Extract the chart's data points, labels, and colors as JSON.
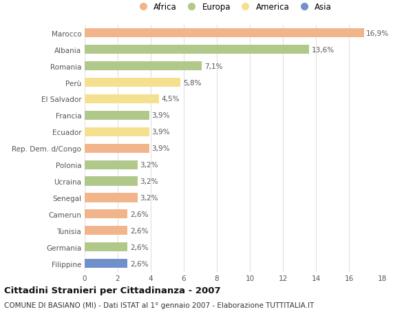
{
  "countries": [
    "Filippine",
    "Germania",
    "Tunisia",
    "Camerun",
    "Senegal",
    "Ucraina",
    "Polonia",
    "Rep. Dem. d/Congo",
    "Ecuador",
    "Francia",
    "El Salvador",
    "Perù",
    "Romania",
    "Albania",
    "Marocco"
  ],
  "values": [
    2.6,
    2.6,
    2.6,
    2.6,
    3.2,
    3.2,
    3.2,
    3.9,
    3.9,
    3.9,
    4.5,
    5.8,
    7.1,
    13.6,
    16.9
  ],
  "labels": [
    "2,6%",
    "2,6%",
    "2,6%",
    "2,6%",
    "3,2%",
    "3,2%",
    "3,2%",
    "3,9%",
    "3,9%",
    "3,9%",
    "4,5%",
    "5,8%",
    "7,1%",
    "13,6%",
    "16,9%"
  ],
  "continents": [
    "Asia",
    "Europa",
    "Africa",
    "Africa",
    "Africa",
    "Europa",
    "Europa",
    "Africa",
    "America",
    "Europa",
    "America",
    "America",
    "Europa",
    "Europa",
    "Africa"
  ],
  "colors": {
    "Africa": "#F2B48A",
    "Europa": "#B0C88A",
    "America": "#F5E090",
    "Asia": "#7090CC"
  },
  "legend_order": [
    "Africa",
    "Europa",
    "America",
    "Asia"
  ],
  "title": "Cittadini Stranieri per Cittadinanza - 2007",
  "subtitle": "COMUNE DI BASIANO (MI) - Dati ISTAT al 1° gennaio 2007 - Elaborazione TUTTITALIA.IT",
  "xlim": [
    0,
    18
  ],
  "xticks": [
    0,
    2,
    4,
    6,
    8,
    10,
    12,
    14,
    16,
    18
  ],
  "bg_color": "#FFFFFF",
  "grid_color": "#E0E0E0",
  "bar_height": 0.55,
  "label_fontsize": 7.5,
  "tick_fontsize": 7.5,
  "title_fontsize": 9.5,
  "subtitle_fontsize": 7.5
}
